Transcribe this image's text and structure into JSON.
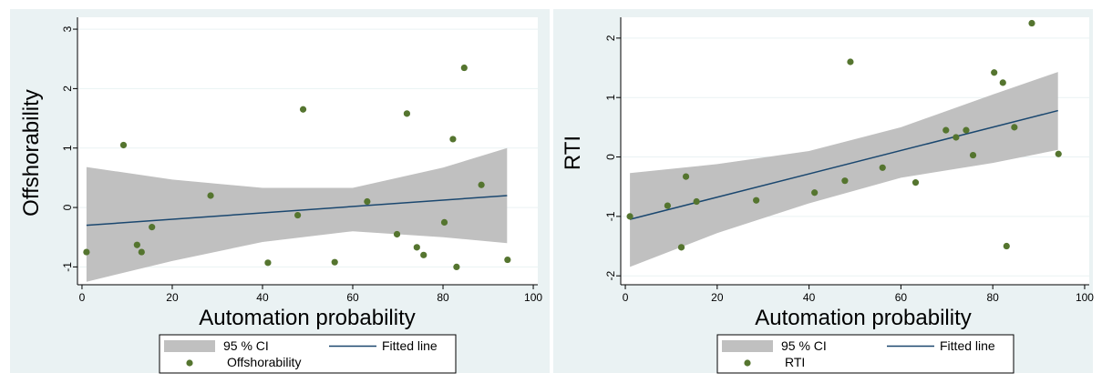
{
  "colors": {
    "outer_bg": "#eaf2f3",
    "plot_bg": "#ffffff",
    "gridline": "#eaf2f3",
    "ci_band": "#c0c0c0",
    "fitted_line": "#1a476f",
    "marker": "#55752f"
  },
  "chart_data": [
    {
      "type": "scatter",
      "title": "",
      "xlabel": "Automation probability",
      "ylabel": "Offshorability",
      "xlim": [
        -1,
        101
      ],
      "ylim": [
        -1.3,
        3.2
      ],
      "xticks": [
        0,
        20,
        40,
        60,
        80,
        100
      ],
      "yticks": [
        -1,
        0,
        1,
        2,
        3
      ],
      "grid": true,
      "legend_position": "bottom",
      "legend": {
        "ci": "95 % CI",
        "fit": "Fitted line",
        "points": "Offshorability"
      },
      "fitted_line": {
        "x": [
          1,
          94.2
        ],
        "y": [
          -0.3,
          0.2
        ]
      },
      "ci_band": {
        "x": [
          1,
          20,
          40,
          60,
          80,
          94.2
        ],
        "lower": [
          -1.25,
          -0.9,
          -0.58,
          -0.4,
          -0.5,
          -0.6
        ],
        "upper": [
          0.68,
          0.47,
          0.33,
          0.33,
          0.67,
          1.0
        ]
      },
      "points": {
        "x": [
          1,
          9.2,
          12.2,
          13.2,
          15.5,
          28.5,
          41.2,
          47.8,
          49,
          56,
          63.2,
          69.8,
          72,
          74.2,
          75.7,
          80.3,
          82.2,
          83,
          84.7,
          88.5,
          94.3
        ],
        "y": [
          -0.75,
          1.05,
          -0.63,
          -0.75,
          -0.33,
          0.2,
          -0.93,
          -0.13,
          1.65,
          -0.92,
          0.1,
          -0.45,
          1.58,
          -0.67,
          -0.8,
          -0.25,
          1.15,
          -1.0,
          2.35,
          0.38,
          -0.88
        ]
      }
    },
    {
      "type": "scatter",
      "title": "",
      "xlabel": "Automation probability",
      "ylabel": "RTI",
      "xlim": [
        -1,
        101
      ],
      "ylim": [
        -2.15,
        2.35
      ],
      "xticks": [
        0,
        20,
        40,
        60,
        80,
        100
      ],
      "yticks": [
        -2,
        -1,
        0,
        1,
        2
      ],
      "grid": true,
      "legend_position": "bottom",
      "legend": {
        "ci": "95 % CI",
        "fit": "Fitted line",
        "points": "RTI"
      },
      "fitted_line": {
        "x": [
          1,
          94.2
        ],
        "y": [
          -1.05,
          0.78
        ]
      },
      "ci_band": {
        "x": [
          1,
          20,
          40,
          60,
          80,
          94.2
        ],
        "lower": [
          -1.85,
          -1.28,
          -0.78,
          -0.35,
          -0.1,
          0.12
        ],
        "upper": [
          -0.27,
          -0.12,
          0.1,
          0.5,
          1.05,
          1.43
        ]
      },
      "points": {
        "x": [
          1,
          9.2,
          12.2,
          13.2,
          15.5,
          28.5,
          41.2,
          47.8,
          49,
          56,
          63.2,
          69.8,
          72,
          74.2,
          75.7,
          80.3,
          82.2,
          83,
          84.7,
          88.5,
          94.3
        ],
        "y": [
          -1.0,
          -0.82,
          -1.52,
          -0.33,
          -0.75,
          -0.73,
          -0.6,
          -0.4,
          1.6,
          -0.18,
          -0.43,
          0.45,
          0.33,
          0.45,
          0.03,
          1.42,
          1.25,
          -1.5,
          0.5,
          2.25,
          0.05
        ]
      }
    }
  ]
}
